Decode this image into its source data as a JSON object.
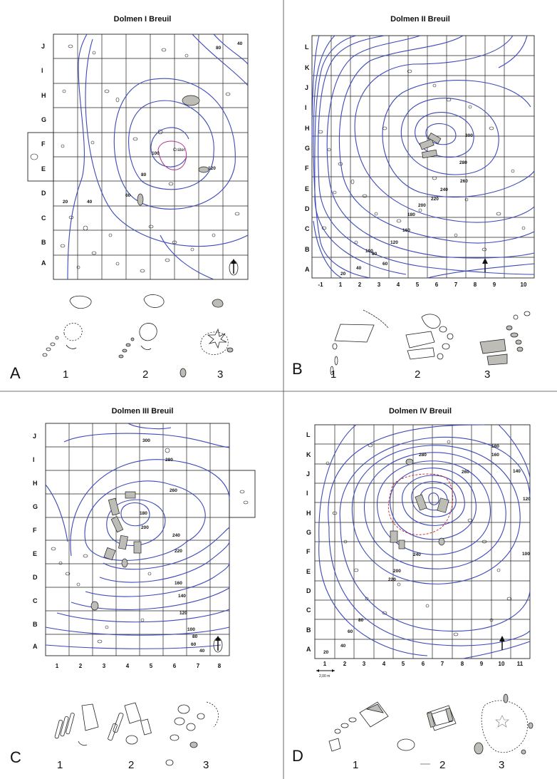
{
  "panels": [
    {
      "id": "A",
      "title": "Dolmen I Breuil",
      "rows": [
        "A",
        "B",
        "C",
        "D",
        "E",
        "F",
        "G",
        "H",
        "I",
        "J"
      ],
      "cols": [],
      "contour_labels": [
        "20",
        "40",
        "60",
        "80",
        "100",
        "120",
        "80",
        "40"
      ],
      "crater_label": "Cráter",
      "stages": [
        "1",
        "2",
        "3"
      ],
      "panel_label": "A"
    },
    {
      "id": "B",
      "title": "Dolmen II Breuil",
      "rows": [
        "A",
        "B",
        "C",
        "D",
        "E",
        "F",
        "G",
        "H",
        "I",
        "J",
        "K",
        "L"
      ],
      "cols": [
        "-1",
        "1",
        "2",
        "3",
        "4",
        "5",
        "6",
        "7",
        "8",
        "9",
        "10"
      ],
      "contour_labels": [
        "20",
        "40",
        "60",
        "80",
        "100",
        "120",
        "160",
        "180",
        "200",
        "220",
        "240",
        "260",
        "280",
        "300"
      ],
      "stages": [
        "1",
        "2",
        "3"
      ],
      "panel_label": "B"
    },
    {
      "id": "C",
      "title": "Dolmen   III   Breuil",
      "rows": [
        "A",
        "B",
        "C",
        "D",
        "E",
        "F",
        "G",
        "H",
        "I",
        "J"
      ],
      "cols": [
        "1",
        "2",
        "3",
        "4",
        "5",
        "6",
        "7",
        "8"
      ],
      "contour_labels": [
        "300",
        "280",
        "260",
        "240",
        "220",
        "200",
        "180",
        "160",
        "140",
        "120",
        "100",
        "80",
        "60",
        "40"
      ],
      "stages": [
        "1",
        "2",
        "3"
      ],
      "panel_label": "C"
    },
    {
      "id": "D",
      "title": "Dolmen IV   Breuil",
      "rows": [
        "A",
        "B",
        "C",
        "D",
        "E",
        "F",
        "G",
        "H",
        "I",
        "J",
        "K",
        "L"
      ],
      "cols": [
        "1",
        "2",
        "3",
        "4",
        "5",
        "6",
        "7",
        "8",
        "9",
        "10",
        "11"
      ],
      "contour_labels": [
        "20",
        "40",
        "60",
        "80",
        "100",
        "120",
        "140",
        "160",
        "180",
        "200",
        "220",
        "240",
        "260",
        "280"
      ],
      "scale_label": "2,00 m",
      "stages": [
        "1",
        "2",
        "3"
      ],
      "panel_label": "D"
    }
  ]
}
